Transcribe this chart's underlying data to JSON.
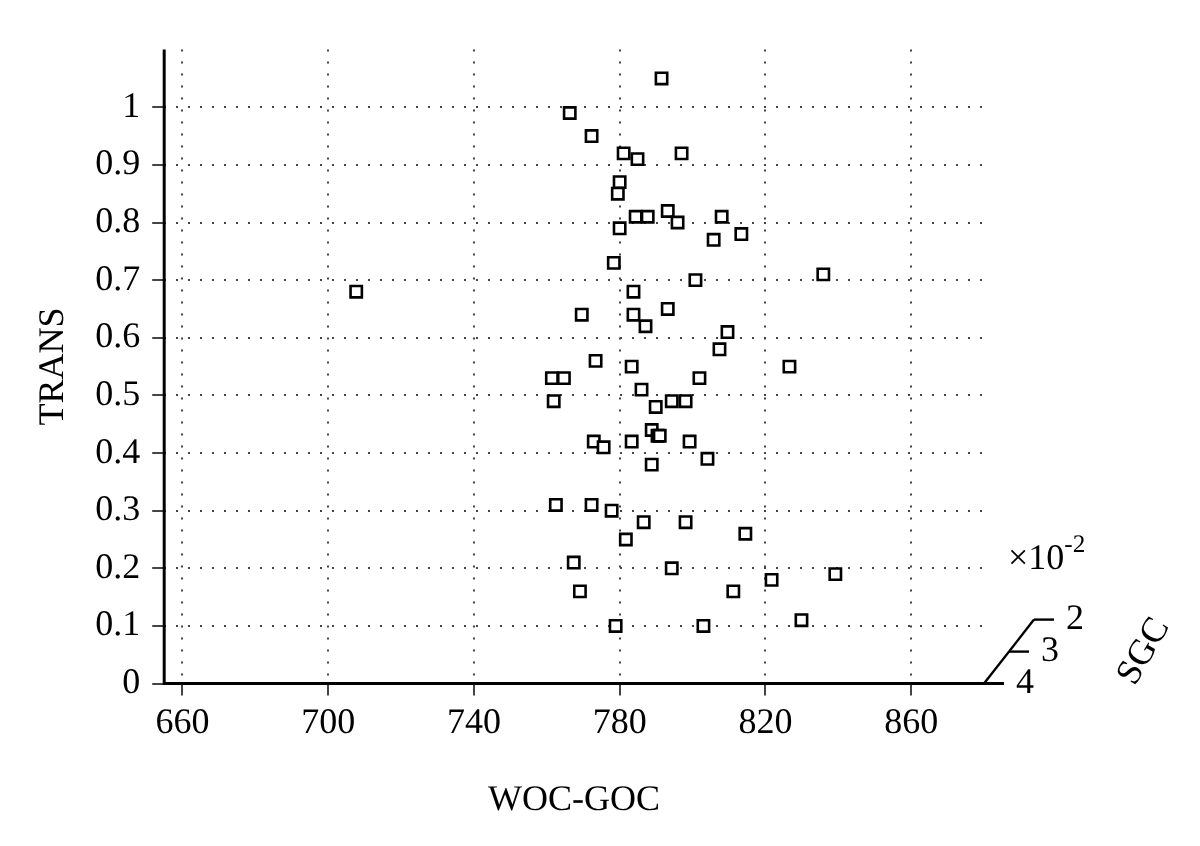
{
  "chart_data": {
    "type": "scatter",
    "xlabel": "WOC-GOC",
    "ylabel": "TRANS",
    "x": [
      791.5,
      766.3,
      772.3,
      781.1,
      784.9,
      797.0,
      780.0,
      779.5,
      784.4,
      787.7,
      793.2,
      795.9,
      808.0,
      780.0,
      813.4,
      805.8,
      778.4,
      835.9,
      800.8,
      783.8,
      769.6,
      783.8,
      793.2,
      787.1,
      809.6,
      807.4,
      773.4,
      783.3,
      826.6,
      801.9,
      761.4,
      764.7,
      786.0,
      761.9,
      794.3,
      798.1,
      789.9,
      707.7,
      788.8,
      790.4,
      791.0,
      799.2,
      772.9,
      775.6,
      783.3,
      788.8,
      804.1,
      762.5,
      772.3,
      777.8,
      786.6,
      798.1,
      814.5,
      781.7,
      767.4,
      794.3,
      821.7,
      839.2,
      769.1,
      811.2,
      778.9,
      803.0,
      829.9
    ],
    "values": [
      1.05,
      0.99,
      0.95,
      0.92,
      0.91,
      0.92,
      0.87,
      0.85,
      0.81,
      0.81,
      0.82,
      0.8,
      0.81,
      0.79,
      0.78,
      0.77,
      0.73,
      0.71,
      0.7,
      0.68,
      0.64,
      0.64,
      0.65,
      0.62,
      0.61,
      0.58,
      0.56,
      0.55,
      0.55,
      0.53,
      0.53,
      0.53,
      0.51,
      0.49,
      0.49,
      0.49,
      0.48,
      0.68,
      0.44,
      0.43,
      0.43,
      0.42,
      0.42,
      0.41,
      0.42,
      0.38,
      0.39,
      0.31,
      0.31,
      0.3,
      0.28,
      0.28,
      0.26,
      0.25,
      0.21,
      0.2,
      0.18,
      0.19,
      0.16,
      0.16,
      0.1,
      0.1,
      0.11
    ],
    "color": "#000000",
    "marker": "square",
    "grid": true,
    "xlim": [
      655,
      880
    ],
    "xticks": [
      660,
      700,
      740,
      780,
      820,
      860
    ],
    "ylim": [
      0,
      1.1
    ],
    "yticks": [
      0,
      0.1,
      0.2,
      0.3,
      0.4,
      0.5,
      0.6,
      0.7,
      0.8,
      0.9,
      1
    ],
    "annotations": [
      "×10$^{-2}$",
      "2",
      "3",
      "4",
      "SGC"
    ]
  }
}
